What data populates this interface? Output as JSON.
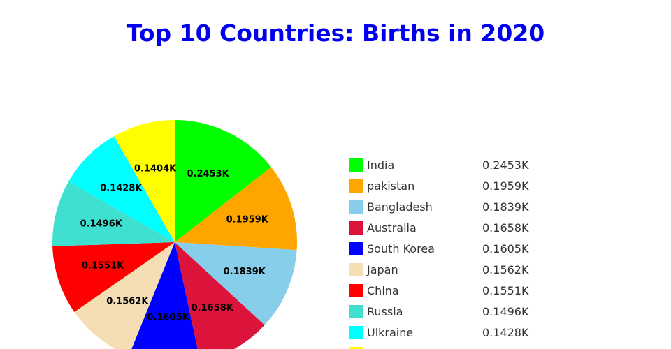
{
  "chart_data": {
    "type": "pie",
    "title": "Top 10 Countries: Births in 2020",
    "legend_position": "right",
    "slices": [
      {
        "label": "India",
        "value": 245.3,
        "display": "0.2453K",
        "color": "#00ff00"
      },
      {
        "label": "pakistan",
        "value": 195.9,
        "display": "0.1959K",
        "color": "#ffa500"
      },
      {
        "label": "Bangladesh",
        "value": 183.9,
        "display": "0.1839K",
        "color": "#87ceeb"
      },
      {
        "label": "Australia",
        "value": 165.8,
        "display": "0.1658K",
        "color": "#dc143c"
      },
      {
        "label": "South Korea",
        "value": 160.5,
        "display": "0.1605K",
        "color": "#0000ff"
      },
      {
        "label": "Japan",
        "value": 156.2,
        "display": "0.1562K",
        "color": "#f5deb3"
      },
      {
        "label": "China",
        "value": 155.1,
        "display": "0.1551K",
        "color": "#ff0000"
      },
      {
        "label": "Russia",
        "value": 149.6,
        "display": "0.1496K",
        "color": "#40e0d0"
      },
      {
        "label": "Ulkraine",
        "value": 142.8,
        "display": "0.1428K",
        "color": "#00ffff"
      },
      {
        "label": "",
        "value": 140.4,
        "display": "0.1404K",
        "color": "#ffff00"
      }
    ]
  }
}
